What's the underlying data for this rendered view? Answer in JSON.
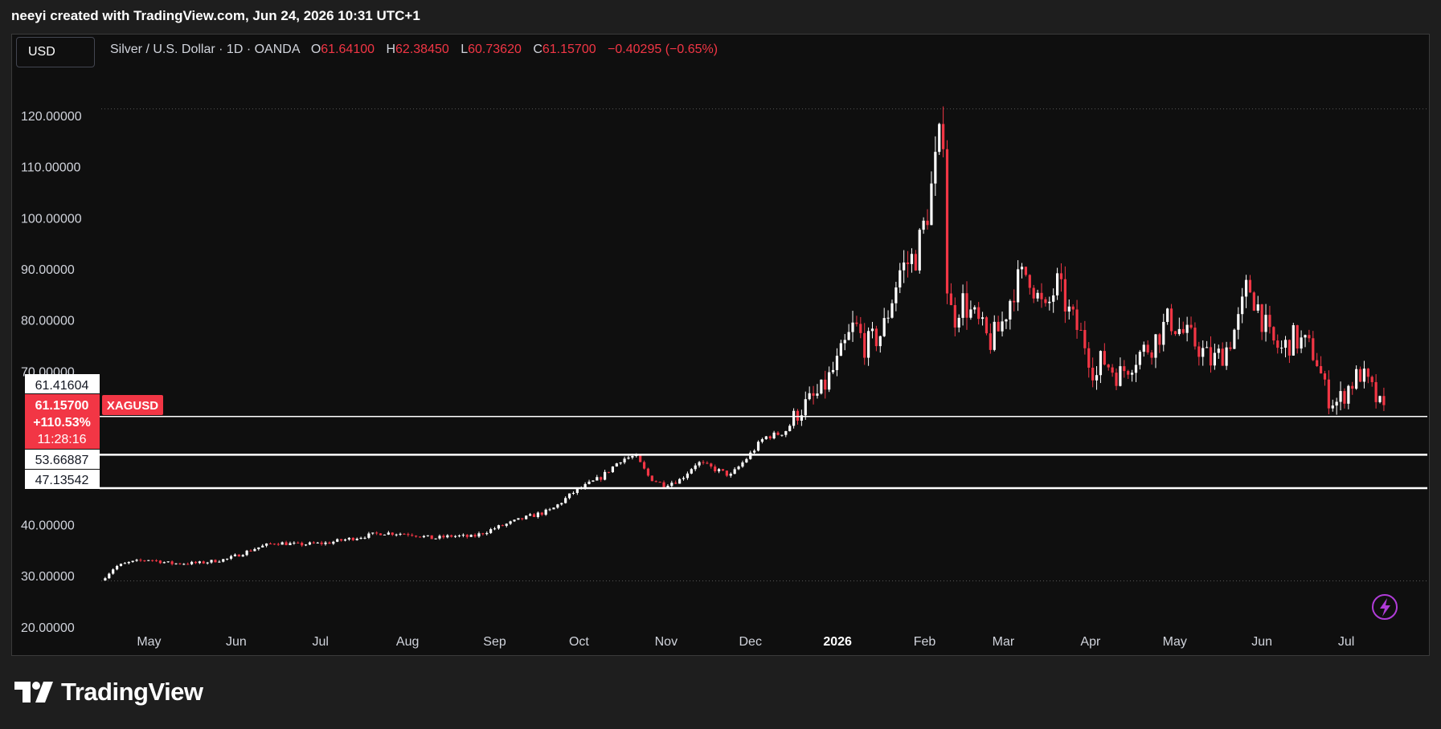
{
  "header": {
    "attribution": "neeyi created with TradingView.com, Jun 24, 2026 10:31 UTC+1"
  },
  "toolbar": {
    "currency_label": "USD"
  },
  "legend": {
    "symbol": "Silver / U.S. Dollar · 1D · OANDA",
    "open_label": "O",
    "open": "61.64100",
    "high_label": "H",
    "high": "62.38450",
    "low_label": "L",
    "low": "60.73620",
    "close_label": "C",
    "close": "61.15700",
    "change": "−0.40295 (−0.65%)"
  },
  "price_markers": {
    "upper": "61.41604",
    "current_price": "61.15700",
    "current_change": "+110.53%",
    "countdown": "11:28:16",
    "level_2": "53.66887",
    "level_3": "47.13542",
    "symbol_tag": "XAGUSD"
  },
  "colors": {
    "up": "#ffffff",
    "down": "#f23645",
    "background": "#0f0f0f",
    "accent": "#b03cd8"
  },
  "footer": {
    "brand": "TradingView"
  },
  "icons": {
    "flash": "lightning-icon",
    "logo": "tradingview-logo-icon"
  },
  "chart_data": {
    "type": "candlestick",
    "ylim": [
      17,
      125
    ],
    "y_ticks": [
      {
        "value": 120,
        "label": "120.00000"
      },
      {
        "value": 110,
        "label": "110.00000"
      },
      {
        "value": 100,
        "label": "100.00000"
      },
      {
        "value": 90,
        "label": "90.00000"
      },
      {
        "value": 80,
        "label": "80.00000"
      },
      {
        "value": 70,
        "label": "70.00000"
      },
      {
        "value": 40,
        "label": "40.00000"
      },
      {
        "value": 30,
        "label": "30.00000"
      },
      {
        "value": 20,
        "label": "20.00000"
      }
    ],
    "x_ticks": [
      {
        "label": "May",
        "day": 17
      },
      {
        "label": "Jun",
        "day": 48
      },
      {
        "label": "Jul",
        "day": 78
      },
      {
        "label": "Aug",
        "day": 109
      },
      {
        "label": "Sep",
        "day": 140
      },
      {
        "label": "Oct",
        "day": 170
      },
      {
        "label": "Nov",
        "day": 201
      },
      {
        "label": "Dec",
        "day": 231
      },
      {
        "label": "2026",
        "day": 262,
        "bold": true
      },
      {
        "label": "Feb",
        "day": 293
      },
      {
        "label": "Mar",
        "day": 321
      },
      {
        "label": "Apr",
        "day": 352
      },
      {
        "label": "May",
        "day": 382
      },
      {
        "label": "Jun",
        "day": 413
      },
      {
        "label": "Jul",
        "day": 443
      }
    ],
    "horizontal_levels": [
      61.157,
      53.66887,
      47.13542
    ],
    "dotted_levels": [
      121.3,
      29.0
    ],
    "path": [
      [
        0,
        29.1
      ],
      [
        5,
        31.8
      ],
      [
        10,
        32.6
      ],
      [
        17,
        33.2
      ],
      [
        25,
        32.4
      ],
      [
        35,
        32.5
      ],
      [
        45,
        33.3
      ],
      [
        55,
        35.4
      ],
      [
        62,
        36.5
      ],
      [
        70,
        36.1
      ],
      [
        80,
        36.4
      ],
      [
        88,
        37.2
      ],
      [
        100,
        38.4
      ],
      [
        110,
        38.2
      ],
      [
        118,
        37.3
      ],
      [
        125,
        37.8
      ],
      [
        132,
        37.6
      ],
      [
        140,
        39.3
      ],
      [
        150,
        41.2
      ],
      [
        160,
        42.8
      ],
      [
        168,
        46.3
      ],
      [
        178,
        49.3
      ],
      [
        185,
        52.8
      ],
      [
        190,
        53.4
      ],
      [
        195,
        49.2
      ],
      [
        200,
        47.8
      ],
      [
        206,
        48.8
      ],
      [
        212,
        52.2
      ],
      [
        218,
        50.9
      ],
      [
        224,
        49.6
      ],
      [
        230,
        53.2
      ],
      [
        236,
        57.1
      ],
      [
        240,
        57.6
      ],
      [
        244,
        58.6
      ],
      [
        248,
        62.2
      ],
      [
        256,
        65.8
      ],
      [
        262,
        71.6
      ],
      [
        268,
        79.1
      ],
      [
        272,
        74.8
      ],
      [
        278,
        77.6
      ],
      [
        284,
        89.6
      ],
      [
        290,
        92.8
      ],
      [
        294,
        101.2
      ],
      [
        298,
        114.2
      ],
      [
        300,
        118.1
      ],
      [
        301,
        86.6
      ],
      [
        303,
        79.6
      ],
      [
        306,
        84.1
      ],
      [
        312,
        79.3
      ],
      [
        316,
        75.6
      ],
      [
        320,
        78.5
      ],
      [
        325,
        86.8
      ],
      [
        330,
        89.6
      ],
      [
        333,
        84.6
      ],
      [
        336,
        81.2
      ],
      [
        340,
        87.2
      ],
      [
        345,
        80.6
      ],
      [
        350,
        75.6
      ],
      [
        354,
        68.6
      ],
      [
        356,
        72.6
      ],
      [
        362,
        69.1
      ],
      [
        368,
        72.8
      ],
      [
        374,
        75.4
      ],
      [
        380,
        80.2
      ],
      [
        385,
        77.4
      ],
      [
        390,
        75.1
      ],
      [
        395,
        71.8
      ],
      [
        400,
        74.1
      ],
      [
        405,
        80.1
      ],
      [
        408,
        87.2
      ],
      [
        412,
        82.1
      ],
      [
        416,
        75.9
      ],
      [
        420,
        74.1
      ],
      [
        424,
        76.4
      ],
      [
        428,
        75.4
      ],
      [
        432,
        73.3
      ],
      [
        436,
        65.2
      ],
      [
        440,
        63.8
      ],
      [
        444,
        67.1
      ],
      [
        448,
        69.6
      ],
      [
        452,
        66.3
      ],
      [
        455,
        63.1
      ],
      [
        457,
        61.2
      ]
    ]
  }
}
